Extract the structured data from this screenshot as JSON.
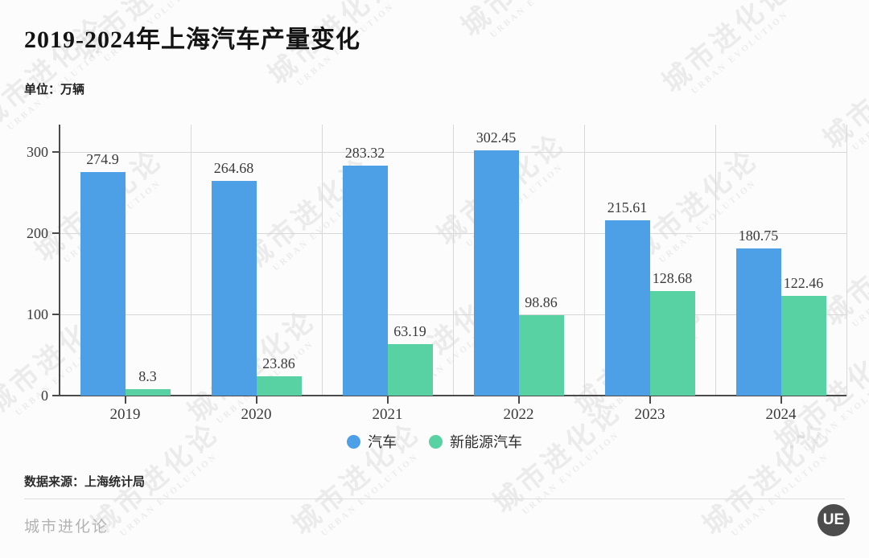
{
  "title": "2019-2024年上海汽车产量变化",
  "unit_label": "单位：万辆",
  "source_label": "数据来源：上海统计局",
  "footer_brand": "城市进化论",
  "logo_text": "UE",
  "watermark": {
    "line1": "城市进化论",
    "line2": "URBAN EVOLUTION"
  },
  "colors": {
    "car_blue": "#4d9fe6",
    "nev_green": "#58d1a3",
    "axis": "#4a4a4a",
    "grid": "#d8d8d8",
    "text_dark": "#3a3a3a"
  },
  "chart_data": {
    "type": "bar",
    "categories": [
      "2019",
      "2020",
      "2021",
      "2022",
      "2023",
      "2024"
    ],
    "series": [
      {
        "name": "汽车",
        "color": "#4d9fe6",
        "values": [
          274.9,
          264.68,
          283.32,
          302.45,
          215.61,
          180.75
        ]
      },
      {
        "name": "新能源汽车",
        "color": "#58d1a3",
        "values": [
          8.3,
          23.86,
          63.19,
          98.86,
          128.68,
          122.46
        ]
      }
    ],
    "title": "2019-2024年上海汽车产量变化",
    "xlabel": "",
    "ylabel": "万辆",
    "yticks": [
      0,
      100,
      200,
      300
    ],
    "ylim": [
      0,
      334
    ],
    "grid": true,
    "legend_position": "bottom",
    "value_labels": true
  }
}
